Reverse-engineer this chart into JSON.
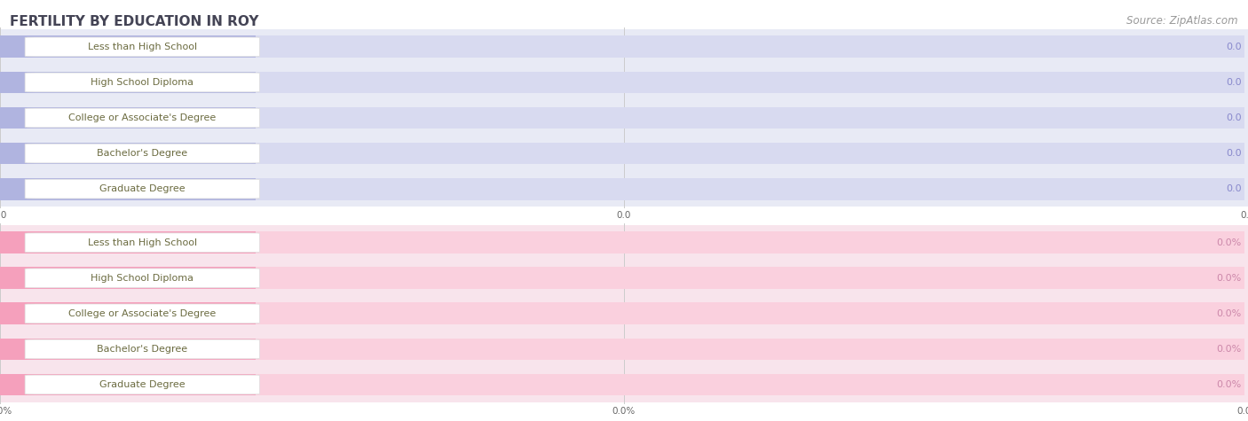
{
  "title": "FERTILITY BY EDUCATION IN ROY",
  "source": "Source: ZipAtlas.com",
  "categories": [
    "Less than High School",
    "High School Diploma",
    "College or Associate's Degree",
    "Bachelor's Degree",
    "Graduate Degree"
  ],
  "top_values": [
    0.0,
    0.0,
    0.0,
    0.0,
    0.0
  ],
  "bottom_values": [
    0.0,
    0.0,
    0.0,
    0.0,
    0.0
  ],
  "top_bar_color": "#b0b4e0",
  "top_bar_light": "#d8daf0",
  "top_row_bg": "#e8eaf5",
  "bottom_bar_color": "#f5a0bc",
  "bottom_bar_light": "#fad0de",
  "bottom_row_bg": "#f8e4ec",
  "label_color": "#6b6b40",
  "value_color_top": "#8888cc",
  "value_color_bottom": "#cc88aa",
  "title_color": "#444455",
  "source_color": "#999999",
  "title_fontsize": 11,
  "source_fontsize": 8.5,
  "label_fontsize": 8,
  "value_fontsize": 8,
  "tick_fontsize": 7.5,
  "bg_color": "#ffffff",
  "row_sep_color": "#e0e0e0",
  "grid_color": "#cccccc",
  "pill_white": "#ffffff",
  "pill_border": "#dddddd"
}
